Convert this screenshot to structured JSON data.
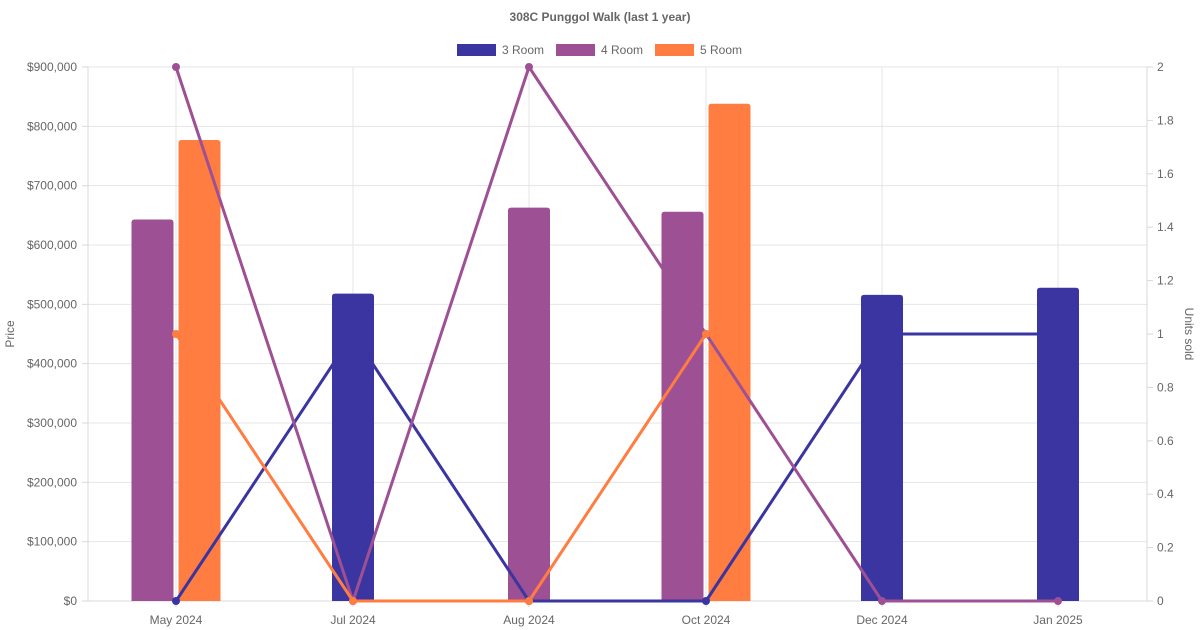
{
  "chart_data": {
    "type": "bar",
    "title": "308C Punggol Walk (last 1 year)",
    "ylabel": "Price",
    "y2label": "Units sold",
    "x": [
      "May 2024",
      "Jul 2024",
      "Aug 2024",
      "Oct 2024",
      "Dec 2024",
      "Jan 2025"
    ],
    "ylim": [
      0,
      900000
    ],
    "y2lim": [
      0,
      2
    ],
    "y_ticks": [
      "$0",
      "$100,000",
      "$200,000",
      "$300,000",
      "$400,000",
      "$500,000",
      "$600,000",
      "$700,000",
      "$800,000",
      "$900,000"
    ],
    "y2_ticks": [
      "0",
      "0.2",
      "0.4",
      "0.6",
      "0.8",
      "1",
      "1.2",
      "1.4",
      "1.6",
      "1.8",
      "2"
    ],
    "legend_position": "top",
    "grid": true,
    "series": [
      {
        "name": "3 Room",
        "color": "#3a35a0",
        "price": [
          null,
          518000,
          null,
          null,
          516000,
          528000
        ],
        "units": [
          0,
          1,
          0,
          0,
          1,
          1
        ]
      },
      {
        "name": "4 Room",
        "color": "#9e5094",
        "price": [
          643000,
          null,
          663000,
          656000,
          null,
          null
        ],
        "units": [
          2,
          0,
          2,
          1,
          0,
          0
        ]
      },
      {
        "name": "5 Room",
        "color": "#ff7d40",
        "price": [
          777000,
          null,
          null,
          838000,
          null,
          null
        ],
        "units": [
          1,
          0,
          0,
          1,
          null,
          null
        ]
      }
    ]
  }
}
